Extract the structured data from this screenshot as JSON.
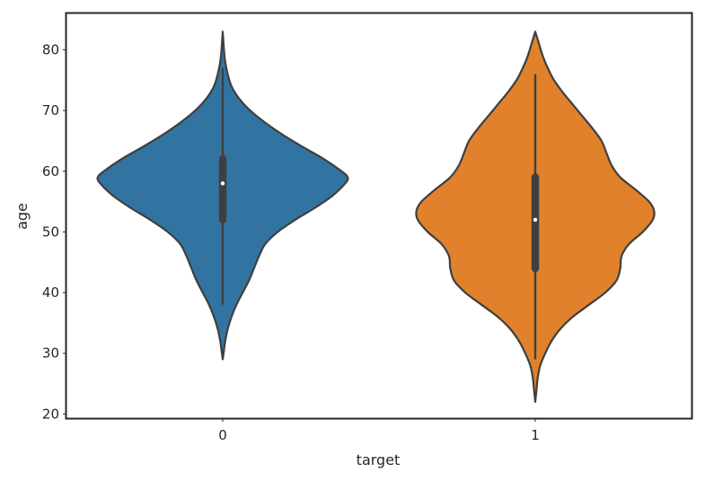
{
  "chart_data": {
    "type": "violin",
    "xlabel": "target",
    "ylabel": "age",
    "categories": [
      "0",
      "1"
    ],
    "ylim": [
      19.3,
      86
    ],
    "yticks": [
      20,
      30,
      40,
      50,
      60,
      70,
      80
    ],
    "grid": false,
    "colors": [
      "#3274a1",
      "#e1812c"
    ],
    "violins": [
      {
        "category": "0",
        "min": 29,
        "max": 83,
        "whisker_low": 38,
        "whisker_high": 77,
        "q1": 52,
        "median": 58,
        "q3": 62,
        "profile": [
          [
            29.0,
            0.0
          ],
          [
            30.5,
            0.01
          ],
          [
            32.0,
            0.02
          ],
          [
            34.0,
            0.04
          ],
          [
            36.0,
            0.07
          ],
          [
            38.0,
            0.11
          ],
          [
            40.0,
            0.16
          ],
          [
            42.0,
            0.21
          ],
          [
            44.0,
            0.25
          ],
          [
            46.0,
            0.29
          ],
          [
            48.0,
            0.34
          ],
          [
            50.0,
            0.44
          ],
          [
            52.0,
            0.58
          ],
          [
            54.0,
            0.74
          ],
          [
            56.0,
            0.88
          ],
          [
            58.0,
            0.98
          ],
          [
            59.0,
            1.0
          ],
          [
            60.0,
            0.95
          ],
          [
            62.0,
            0.81
          ],
          [
            64.0,
            0.64
          ],
          [
            66.0,
            0.48
          ],
          [
            68.0,
            0.34
          ],
          [
            70.0,
            0.22
          ],
          [
            72.0,
            0.13
          ],
          [
            74.0,
            0.07
          ],
          [
            76.0,
            0.04
          ],
          [
            78.0,
            0.02
          ],
          [
            80.0,
            0.01
          ],
          [
            83.0,
            0.0
          ]
        ]
      },
      {
        "category": "1",
        "min": 22,
        "max": 83,
        "whisker_low": 29,
        "whisker_high": 76,
        "q1": 44,
        "median": 52,
        "q3": 59,
        "profile": [
          [
            22.0,
            0.0
          ],
          [
            24.0,
            0.01
          ],
          [
            26.0,
            0.02
          ],
          [
            28.0,
            0.04
          ],
          [
            30.0,
            0.08
          ],
          [
            32.0,
            0.13
          ],
          [
            34.0,
            0.2
          ],
          [
            36.0,
            0.3
          ],
          [
            38.0,
            0.43
          ],
          [
            40.0,
            0.56
          ],
          [
            42.0,
            0.65
          ],
          [
            44.0,
            0.68
          ],
          [
            46.0,
            0.69
          ],
          [
            48.0,
            0.75
          ],
          [
            50.0,
            0.86
          ],
          [
            52.0,
            0.94
          ],
          [
            53.5,
            0.95
          ],
          [
            55.0,
            0.91
          ],
          [
            57.0,
            0.8
          ],
          [
            59.0,
            0.68
          ],
          [
            61.0,
            0.61
          ],
          [
            63.0,
            0.57
          ],
          [
            65.0,
            0.53
          ],
          [
            67.0,
            0.46
          ],
          [
            69.0,
            0.38
          ],
          [
            71.0,
            0.3
          ],
          [
            73.0,
            0.22
          ],
          [
            75.0,
            0.15
          ],
          [
            77.0,
            0.1
          ],
          [
            79.0,
            0.06
          ],
          [
            81.0,
            0.03
          ],
          [
            83.0,
            0.0
          ]
        ]
      }
    ]
  }
}
